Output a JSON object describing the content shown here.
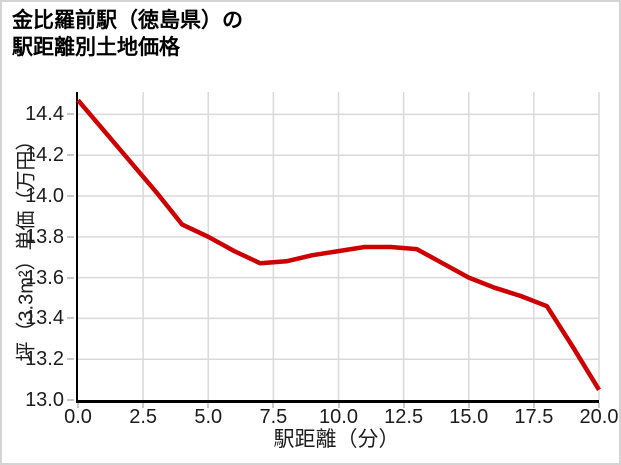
{
  "header": {
    "title_line1": "金比羅前駅（徳島県）の",
    "title_line2": "駅距離別土地価格"
  },
  "chart_data": {
    "type": "line",
    "title": "金比羅前駅（徳島県）の駅距離別土地価格",
    "xlabel": "駅距離（分）",
    "ylabel": "坪（3.3m²）単価（万円）",
    "x": [
      0,
      1,
      2,
      3,
      4,
      5,
      6,
      7,
      8,
      9,
      10,
      11,
      12,
      13,
      14,
      15,
      16,
      17,
      18,
      19,
      20
    ],
    "values": [
      14.47,
      14.32,
      14.17,
      14.02,
      13.86,
      13.8,
      13.73,
      13.67,
      13.68,
      13.71,
      13.73,
      13.75,
      13.75,
      13.74,
      13.67,
      13.6,
      13.55,
      13.51,
      13.46,
      13.26,
      13.05
    ],
    "xlim": [
      0,
      20
    ],
    "ylim": [
      13.0,
      14.51
    ],
    "x_ticks": [
      0,
      2.5,
      5,
      7.5,
      10,
      12.5,
      15,
      17.5,
      20
    ],
    "x_tick_labels": [
      "0.0",
      "2.5",
      "5.0",
      "7.5",
      "10.0",
      "12.5",
      "15.0",
      "17.5",
      "20.0"
    ],
    "y_ticks": [
      13.0,
      13.2,
      13.4,
      13.6,
      13.8,
      14.0,
      14.2,
      14.4
    ],
    "y_tick_labels": [
      "13.0",
      "13.2",
      "13.4",
      "13.6",
      "13.8",
      "14.0",
      "14.2",
      "14.4"
    ],
    "grid": true,
    "legend_position": "none",
    "line_color": "#cc0000",
    "line_width": 4.5,
    "grid_color": "#d9d9d9",
    "axis_color": "#000000",
    "tick_color": "#c8c8c8",
    "tick_label_color": "#1c1c1c"
  }
}
